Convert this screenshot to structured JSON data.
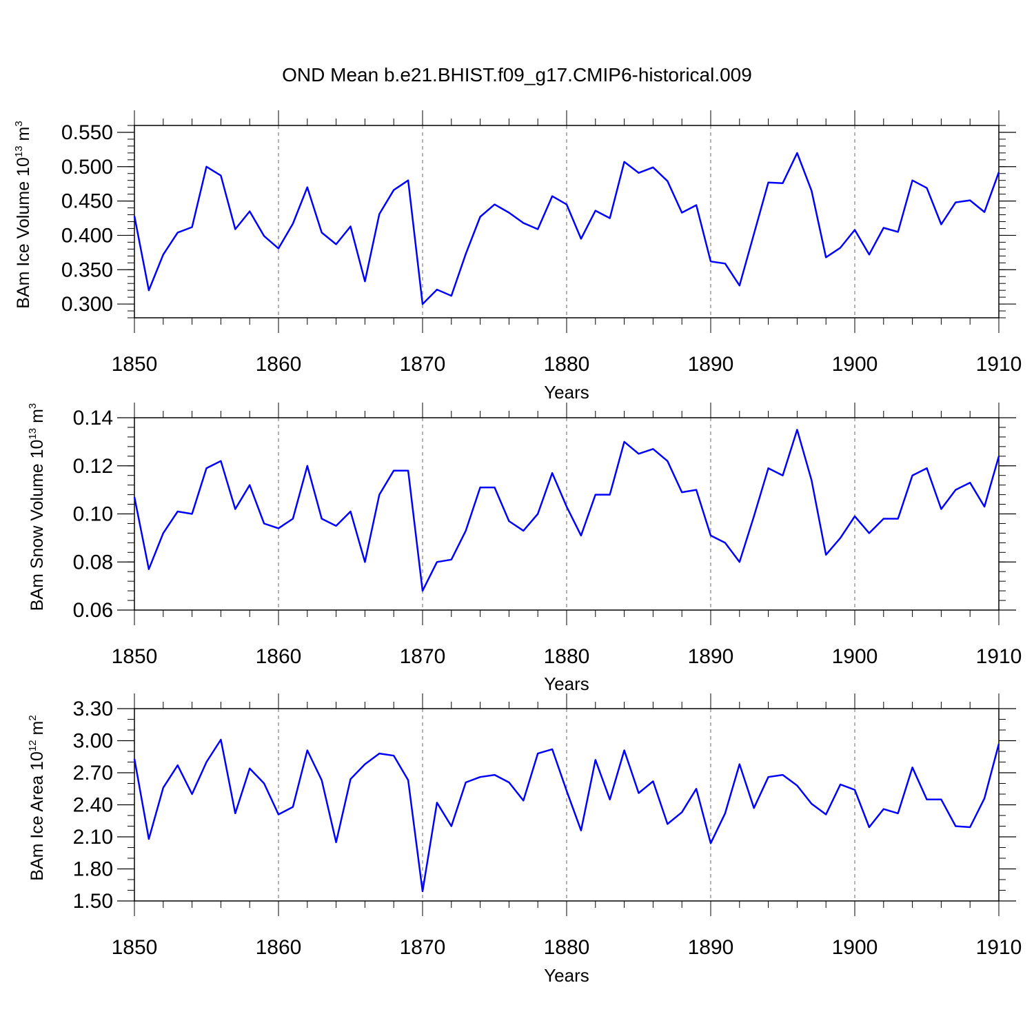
{
  "title": "OND Mean b.e21.BHIST.f09_g17.CMIP6-historical.009",
  "colors": {
    "line": "#0000ff",
    "axis": "#000000",
    "grid": "#808080"
  },
  "chart_data": [
    {
      "type": "line",
      "ylabel": {
        "prefix": "BAm Ice Volume 10",
        "exponent": "13",
        "unit": " m",
        "unit_exponent": "3"
      },
      "xlabel": "Years",
      "xlim": [
        1850,
        1910
      ],
      "ylim": [
        0.28,
        0.56
      ],
      "yticks": [
        "0.300",
        "0.350",
        "0.400",
        "0.450",
        "0.500",
        "0.550"
      ],
      "ytick_values": [
        0.3,
        0.35,
        0.4,
        0.45,
        0.5,
        0.55
      ],
      "ymajor_step": 0.05,
      "yminor_step": 0.01,
      "xticks": [
        "1850",
        "1860",
        "1870",
        "1880",
        "1890",
        "1900",
        "1910"
      ],
      "xtick_values": [
        1850,
        1860,
        1870,
        1880,
        1890,
        1900,
        1910
      ],
      "grid": "vertical dashed at decades",
      "x": [
        1850,
        1851,
        1852,
        1853,
        1854,
        1855,
        1856,
        1857,
        1858,
        1859,
        1860,
        1861,
        1862,
        1863,
        1864,
        1865,
        1866,
        1867,
        1868,
        1869,
        1870,
        1871,
        1872,
        1873,
        1874,
        1875,
        1876,
        1877,
        1878,
        1879,
        1880,
        1881,
        1882,
        1883,
        1884,
        1885,
        1886,
        1887,
        1888,
        1889,
        1890,
        1891,
        1892,
        1893,
        1894,
        1895,
        1896,
        1897,
        1898,
        1899,
        1900,
        1901,
        1902,
        1903,
        1904,
        1905,
        1906,
        1907,
        1908,
        1909,
        1910
      ],
      "values": [
        0.428,
        0.32,
        0.372,
        0.404,
        0.412,
        0.5,
        0.487,
        0.409,
        0.435,
        0.399,
        0.381,
        0.417,
        0.47,
        0.404,
        0.387,
        0.413,
        0.333,
        0.431,
        0.466,
        0.48,
        0.3,
        0.321,
        0.312,
        0.373,
        0.427,
        0.445,
        0.433,
        0.418,
        0.409,
        0.457,
        0.445,
        0.395,
        0.436,
        0.425,
        0.507,
        0.491,
        0.499,
        0.479,
        0.433,
        0.444,
        0.362,
        0.359,
        0.327,
        0.402,
        0.477,
        0.476,
        0.52,
        0.465,
        0.368,
        0.382,
        0.408,
        0.372,
        0.411,
        0.405,
        0.48,
        0.469,
        0.416,
        0.448,
        0.451,
        0.434,
        0.492
      ]
    },
    {
      "type": "line",
      "ylabel": {
        "prefix": "BAm Snow Volume 10",
        "exponent": "13",
        "unit": " m",
        "unit_exponent": "3"
      },
      "xlabel": "Years",
      "xlim": [
        1850,
        1910
      ],
      "ylim": [
        0.06,
        0.14
      ],
      "yticks": [
        "0.06",
        "0.08",
        "0.10",
        "0.12",
        "0.14"
      ],
      "ytick_values": [
        0.06,
        0.08,
        0.1,
        0.12,
        0.14
      ],
      "ymajor_step": 0.02,
      "yminor_step": 0.004,
      "xticks": [
        "1850",
        "1860",
        "1870",
        "1880",
        "1890",
        "1900",
        "1910"
      ],
      "xtick_values": [
        1850,
        1860,
        1870,
        1880,
        1890,
        1900,
        1910
      ],
      "grid": "vertical dashed at decades",
      "x": [
        1850,
        1851,
        1852,
        1853,
        1854,
        1855,
        1856,
        1857,
        1858,
        1859,
        1860,
        1861,
        1862,
        1863,
        1864,
        1865,
        1866,
        1867,
        1868,
        1869,
        1870,
        1871,
        1872,
        1873,
        1874,
        1875,
        1876,
        1877,
        1878,
        1879,
        1880,
        1881,
        1882,
        1883,
        1884,
        1885,
        1886,
        1887,
        1888,
        1889,
        1890,
        1891,
        1892,
        1893,
        1894,
        1895,
        1896,
        1897,
        1898,
        1899,
        1900,
        1901,
        1902,
        1903,
        1904,
        1905,
        1906,
        1907,
        1908,
        1909,
        1910
      ],
      "values": [
        0.107,
        0.077,
        0.092,
        0.101,
        0.1,
        0.119,
        0.122,
        0.102,
        0.112,
        0.096,
        0.094,
        0.098,
        0.12,
        0.098,
        0.095,
        0.101,
        0.08,
        0.108,
        0.118,
        0.118,
        0.068,
        0.08,
        0.081,
        0.093,
        0.111,
        0.111,
        0.097,
        0.093,
        0.1,
        0.117,
        0.103,
        0.091,
        0.108,
        0.108,
        0.13,
        0.125,
        0.127,
        0.122,
        0.109,
        0.11,
        0.091,
        0.088,
        0.08,
        0.099,
        0.119,
        0.116,
        0.135,
        0.114,
        0.083,
        0.09,
        0.099,
        0.092,
        0.098,
        0.098,
        0.116,
        0.119,
        0.102,
        0.11,
        0.113,
        0.103,
        0.124
      ]
    },
    {
      "type": "line",
      "ylabel": {
        "prefix": "BAm Ice Area 10",
        "exponent": "12",
        "unit": " m",
        "unit_exponent": "2"
      },
      "xlabel": "Years",
      "xlim": [
        1850,
        1910
      ],
      "ylim": [
        1.5,
        3.3
      ],
      "yticks": [
        "1.50",
        "1.80",
        "2.10",
        "2.40",
        "2.70",
        "3.00",
        "3.30"
      ],
      "ytick_values": [
        1.5,
        1.8,
        2.1,
        2.4,
        2.7,
        3.0,
        3.3
      ],
      "ymajor_step": 0.3,
      "yminor_step": 0.1,
      "xticks": [
        "1850",
        "1860",
        "1870",
        "1880",
        "1890",
        "1900",
        "1910"
      ],
      "xtick_values": [
        1850,
        1860,
        1870,
        1880,
        1890,
        1900,
        1910
      ],
      "grid": "vertical dashed at decades",
      "x": [
        1850,
        1851,
        1852,
        1853,
        1854,
        1855,
        1856,
        1857,
        1858,
        1859,
        1860,
        1861,
        1862,
        1863,
        1864,
        1865,
        1866,
        1867,
        1868,
        1869,
        1870,
        1871,
        1872,
        1873,
        1874,
        1875,
        1876,
        1877,
        1878,
        1879,
        1880,
        1881,
        1882,
        1883,
        1884,
        1885,
        1886,
        1887,
        1888,
        1889,
        1890,
        1891,
        1892,
        1893,
        1894,
        1895,
        1896,
        1897,
        1898,
        1899,
        1900,
        1901,
        1902,
        1903,
        1904,
        1905,
        1906,
        1907,
        1908,
        1909,
        1910
      ],
      "values": [
        2.83,
        2.08,
        2.56,
        2.77,
        2.5,
        2.8,
        3.01,
        2.32,
        2.74,
        2.6,
        2.31,
        2.38,
        2.91,
        2.63,
        2.05,
        2.64,
        2.78,
        2.88,
        2.86,
        2.63,
        1.59,
        2.42,
        2.2,
        2.61,
        2.66,
        2.68,
        2.61,
        2.44,
        2.88,
        2.92,
        2.53,
        2.16,
        2.82,
        2.45,
        2.91,
        2.51,
        2.62,
        2.22,
        2.33,
        2.55,
        2.04,
        2.32,
        2.78,
        2.37,
        2.66,
        2.68,
        2.58,
        2.41,
        2.31,
        2.59,
        2.54,
        2.19,
        2.36,
        2.32,
        2.75,
        2.45,
        2.45,
        2.2,
        2.19,
        2.46,
        2.97
      ]
    }
  ]
}
